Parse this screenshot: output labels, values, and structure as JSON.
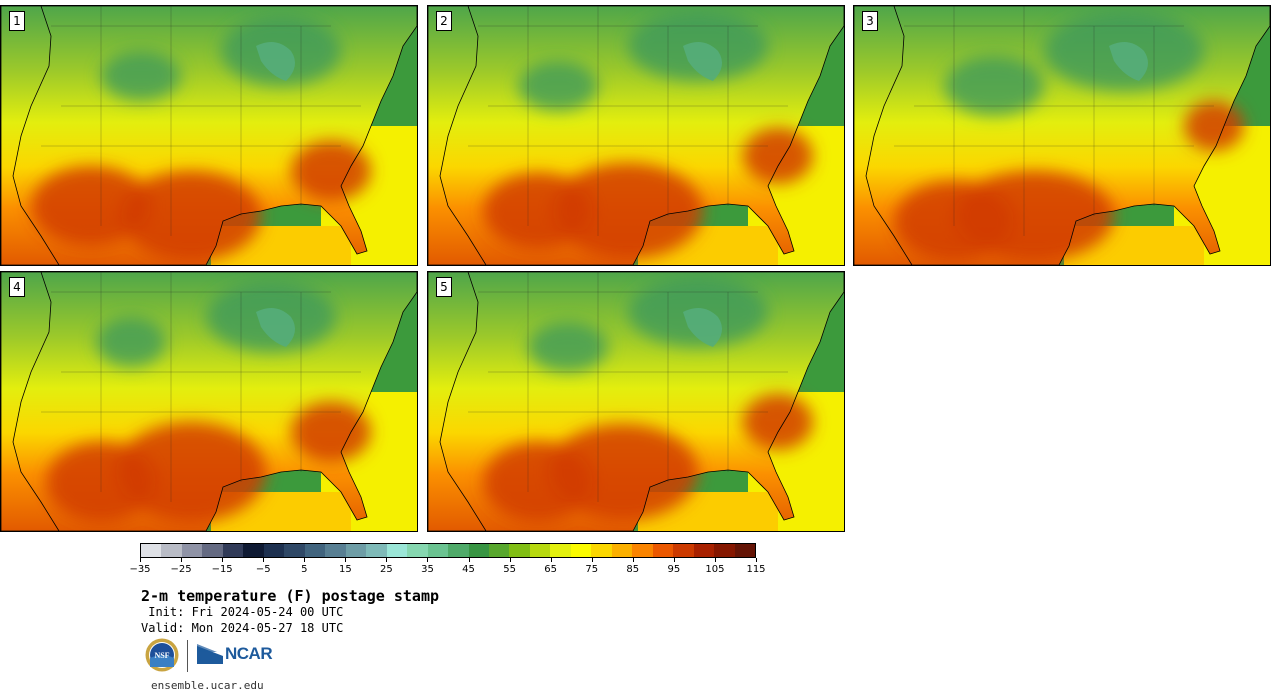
{
  "panels": [
    {
      "label": "1"
    },
    {
      "label": "2"
    },
    {
      "label": "3"
    },
    {
      "label": "4"
    },
    {
      "label": "5"
    }
  ],
  "colorbar": {
    "colors": [
      "#dfe1e6",
      "#b9bcc6",
      "#8f93a6",
      "#646a82",
      "#313b58",
      "#0f1a33",
      "#1e3150",
      "#2f4866",
      "#41647e",
      "#587f93",
      "#6e9da6",
      "#7fbab8",
      "#9be6d7",
      "#86d7b0",
      "#6bc391",
      "#4faa69",
      "#389543",
      "#58a72d",
      "#81be14",
      "#b7d90f",
      "#e3f00d",
      "#fbfb00",
      "#fbd700",
      "#fbb000",
      "#fa8400",
      "#eb5800",
      "#cc3a00",
      "#a82100",
      "#851700",
      "#641405"
    ],
    "labels": [
      "−35",
      "−25",
      "−15",
      "−5",
      "5",
      "15",
      "25",
      "35",
      "45",
      "55",
      "65",
      "75",
      "85",
      "95",
      "105",
      "115"
    ],
    "range": [
      -35,
      125
    ]
  },
  "title": "2-m temperature (F) postage stamp",
  "init": " Init: Fri 2024-05-24 00 UTC",
  "valid": "Valid: Mon 2024-05-27 18 UTC",
  "logos": {
    "nsf": "NSF",
    "ncar": "NCAR"
  },
  "site": "ensemble.ucar.edu"
}
